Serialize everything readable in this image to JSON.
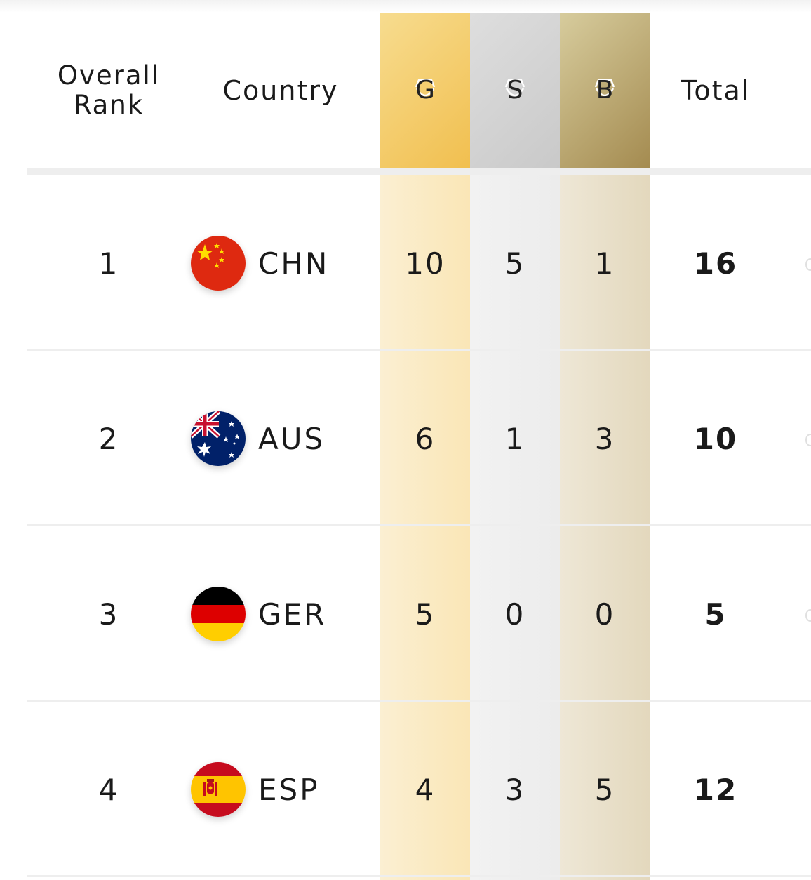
{
  "header": {
    "rank_line1": "Overall",
    "rank_line2": "Rank",
    "country": "Country",
    "gold": "G",
    "silver": "S",
    "bronze": "B",
    "total": "Total"
  },
  "colors": {
    "gold": "#f1bf4f",
    "silver": "#c9c9c9",
    "bronze": "#a48b50"
  },
  "rows": [
    {
      "rank": "1",
      "code": "CHN",
      "flag": "china-flag-icon",
      "gold": "10",
      "silver": "5",
      "bronze": "1",
      "total": "16"
    },
    {
      "rank": "2",
      "code": "AUS",
      "flag": "australia-flag-icon",
      "gold": "6",
      "silver": "1",
      "bronze": "3",
      "total": "10"
    },
    {
      "rank": "3",
      "code": "GER",
      "flag": "germany-flag-icon",
      "gold": "5",
      "silver": "0",
      "bronze": "0",
      "total": "5"
    },
    {
      "rank": "4",
      "code": "ESP",
      "flag": "spain-flag-icon",
      "gold": "4",
      "silver": "3",
      "bronze": "5",
      "total": "12"
    }
  ]
}
